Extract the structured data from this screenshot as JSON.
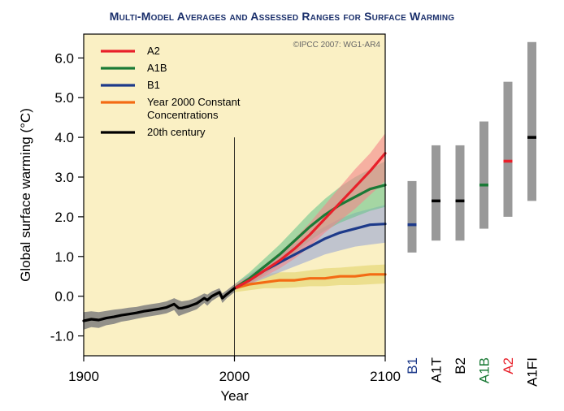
{
  "chart_data": {
    "type": "line",
    "title": "Multi-Model Averages and Assessed Ranges for Surface Warming",
    "credit": "©IPCC 2007: WG1-AR4",
    "xlabel": "Year",
    "ylabel": "Global surface warming (°C)",
    "xlim": [
      1900,
      2100
    ],
    "ylim": [
      -1.5,
      6.6
    ],
    "x_ticks": [
      "1900",
      "2000",
      "2100"
    ],
    "y_ticks": [
      "-1.0",
      "0.0",
      "1.0",
      "2.0",
      "3.0",
      "4.0",
      "5.0",
      "6.0"
    ],
    "background": "#faf0c4",
    "series": [
      {
        "name": "20th century",
        "color": "#000000",
        "band_color": "#7f7f7f",
        "x": [
          1900,
          1905,
          1910,
          1915,
          1920,
          1925,
          1930,
          1935,
          1940,
          1945,
          1950,
          1955,
          1960,
          1963,
          1965,
          1970,
          1975,
          1980,
          1982,
          1985,
          1990,
          1992,
          1995,
          2000
        ],
        "y": [
          -0.62,
          -0.58,
          -0.6,
          -0.55,
          -0.52,
          -0.48,
          -0.45,
          -0.42,
          -0.38,
          -0.35,
          -0.32,
          -0.28,
          -0.2,
          -0.3,
          -0.3,
          -0.25,
          -0.18,
          -0.05,
          -0.1,
          0.0,
          0.1,
          -0.05,
          0.05,
          0.2
        ],
        "spread": [
          0.22,
          0.2,
          0.2,
          0.18,
          0.18,
          0.16,
          0.16,
          0.15,
          0.15,
          0.15,
          0.15,
          0.15,
          0.15,
          0.2,
          0.17,
          0.15,
          0.15,
          0.12,
          0.14,
          0.12,
          0.1,
          0.12,
          0.1,
          0.1
        ]
      },
      {
        "name": "A2",
        "color": "#e8202a",
        "band_color": "#f3858b",
        "x": [
          2000,
          2010,
          2020,
          2030,
          2040,
          2050,
          2060,
          2070,
          2080,
          2090,
          2100
        ],
        "y": [
          0.2,
          0.4,
          0.65,
          0.9,
          1.2,
          1.55,
          1.95,
          2.35,
          2.75,
          3.15,
          3.6
        ],
        "lo": [
          0.15,
          0.3,
          0.5,
          0.7,
          0.95,
          1.25,
          1.6,
          1.9,
          2.2,
          2.55,
          2.9
        ],
        "hi": [
          0.3,
          0.5,
          0.8,
          1.1,
          1.45,
          1.85,
          2.3,
          2.75,
          3.2,
          3.6,
          4.1
        ]
      },
      {
        "name": "A1B",
        "color": "#1a7a36",
        "band_color": "#6cc48e",
        "x": [
          2000,
          2010,
          2020,
          2030,
          2040,
          2050,
          2060,
          2070,
          2080,
          2090,
          2100
        ],
        "y": [
          0.2,
          0.45,
          0.75,
          1.05,
          1.4,
          1.75,
          2.05,
          2.3,
          2.5,
          2.7,
          2.8
        ],
        "lo": [
          0.15,
          0.3,
          0.55,
          0.8,
          1.1,
          1.4,
          1.65,
          1.85,
          2.0,
          2.15,
          2.25
        ],
        "hi": [
          0.3,
          0.6,
          0.95,
          1.3,
          1.7,
          2.1,
          2.45,
          2.75,
          3.0,
          3.2,
          3.4
        ]
      },
      {
        "name": "B1",
        "color": "#1d3a8a",
        "band_color": "#9aa6d6",
        "x": [
          2000,
          2010,
          2020,
          2030,
          2040,
          2050,
          2060,
          2070,
          2080,
          2090,
          2100
        ],
        "y": [
          0.2,
          0.4,
          0.65,
          0.85,
          1.05,
          1.25,
          1.45,
          1.6,
          1.7,
          1.8,
          1.82
        ],
        "lo": [
          0.15,
          0.3,
          0.45,
          0.6,
          0.75,
          0.9,
          1.05,
          1.15,
          1.25,
          1.3,
          1.35
        ],
        "hi": [
          0.3,
          0.55,
          0.8,
          1.05,
          1.3,
          1.55,
          1.75,
          1.95,
          2.1,
          2.2,
          2.3
        ]
      },
      {
        "name": "Year 2000 Constant Concentrations",
        "color": "#f36b14",
        "band_color": "#e3d36a",
        "x": [
          2000,
          2010,
          2020,
          2030,
          2040,
          2050,
          2060,
          2070,
          2080,
          2090,
          2100
        ],
        "y": [
          0.2,
          0.3,
          0.35,
          0.4,
          0.4,
          0.45,
          0.45,
          0.5,
          0.5,
          0.55,
          0.55
        ],
        "lo": [
          0.1,
          0.15,
          0.2,
          0.2,
          0.22,
          0.25,
          0.25,
          0.28,
          0.28,
          0.3,
          0.32
        ],
        "hi": [
          0.3,
          0.45,
          0.55,
          0.6,
          0.6,
          0.65,
          0.7,
          0.72,
          0.75,
          0.78,
          0.8
        ]
      }
    ],
    "legend": [
      {
        "label": "A2",
        "color": "#e8202a"
      },
      {
        "label": "A1B",
        "color": "#1a7a36"
      },
      {
        "label": "B1",
        "color": "#1d3a8a"
      },
      {
        "label": "Year 2000 Constant",
        "label2": "Concentrations",
        "color": "#f36b14"
      },
      {
        "label": "20th century",
        "color": "#000000"
      }
    ],
    "legend_position": "top-left",
    "scenario_ranges": [
      {
        "name": "B1",
        "low": 1.1,
        "high": 2.9,
        "best": 1.8,
        "color": "#1d3a8a"
      },
      {
        "name": "A1T",
        "low": 1.4,
        "high": 3.8,
        "best": 2.4,
        "color": "#000000"
      },
      {
        "name": "B2",
        "low": 1.4,
        "high": 3.8,
        "best": 2.4,
        "color": "#000000"
      },
      {
        "name": "A1B",
        "low": 1.7,
        "high": 4.4,
        "best": 2.8,
        "color": "#1a7a36"
      },
      {
        "name": "A2",
        "low": 2.0,
        "high": 5.4,
        "best": 3.4,
        "color": "#e8202a"
      },
      {
        "name": "A1FI",
        "low": 2.4,
        "high": 6.4,
        "best": 4.0,
        "color": "#000000"
      }
    ],
    "range_bar_color": "#999999"
  }
}
